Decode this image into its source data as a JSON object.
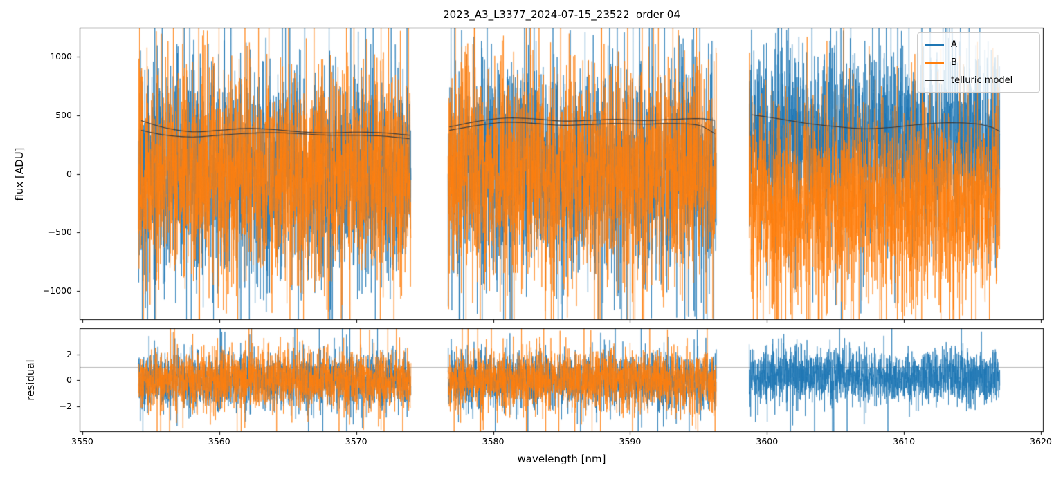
{
  "figure": {
    "title": "2023_A3_L3377_2024-07-15_23522  order 04",
    "xlabel": "wavelength [nm]",
    "background": "#ffffff"
  },
  "legend": {
    "position": "upper right",
    "entries": [
      {
        "label": "A",
        "color": "#1f77b4"
      },
      {
        "label": "B",
        "color": "#ff7f0e"
      },
      {
        "label": "telluric model",
        "color": "#3a3a3a"
      }
    ]
  },
  "chart_data": [
    {
      "id": "flux-panel",
      "type": "line",
      "title": "2023_A3_L3377_2024-07-15_23522  order 04",
      "xlabel": "",
      "ylabel": "flux [ADU]",
      "xlim": [
        3549.8,
        3620.2
      ],
      "ylim": [
        -1250,
        1250
      ],
      "xticks": [
        3550,
        3560,
        3570,
        3580,
        3590,
        3600,
        3610,
        3620
      ],
      "yticks": [
        -1000,
        -500,
        0,
        500,
        1000
      ],
      "grid": false,
      "legend_entries": [
        "A",
        "B",
        "telluric model"
      ],
      "segments": [
        {
          "x_range": [
            3554.1,
            3574.0
          ],
          "noise": {
            "A": {
              "mean": 20,
              "sigma": 430,
              "seed": 11
            },
            "B": {
              "mean": 0,
              "sigma": 440,
              "seed": 22
            }
          },
          "model_curves": [
            [
              [
                3554.3,
                455
              ],
              [
                3556,
                395
              ],
              [
                3558,
                360
              ],
              [
                3560,
                372
              ],
              [
                3562,
                388
              ],
              [
                3564,
                378
              ],
              [
                3566,
                358
              ],
              [
                3568,
                350
              ],
              [
                3570,
                356
              ],
              [
                3572,
                350
              ],
              [
                3573.9,
                330
              ]
            ],
            [
              [
                3554.3,
                372
              ],
              [
                3556,
                332
              ],
              [
                3558,
                315
              ],
              [
                3560,
                330
              ],
              [
                3562,
                345
              ],
              [
                3564,
                352
              ],
              [
                3566,
                342
              ],
              [
                3568,
                330
              ],
              [
                3570,
                330
              ],
              [
                3572,
                322
              ],
              [
                3573.9,
                300
              ]
            ]
          ]
        },
        {
          "x_range": [
            3576.7,
            3596.3
          ],
          "noise": {
            "A": {
              "mean": 30,
              "sigma": 430,
              "seed": 33
            },
            "B": {
              "mean": 10,
              "sigma": 440,
              "seed": 44
            }
          },
          "model_curves": [
            [
              [
                3576.8,
                400
              ],
              [
                3579,
                452
              ],
              [
                3581,
                477
              ],
              [
                3583,
                470
              ],
              [
                3585,
                452
              ],
              [
                3587,
                457
              ],
              [
                3589,
                466
              ],
              [
                3591,
                456
              ],
              [
                3593,
                465
              ],
              [
                3595,
                472
              ],
              [
                3596.2,
                458
              ]
            ],
            [
              [
                3576.8,
                372
              ],
              [
                3579,
                416
              ],
              [
                3581,
                441
              ],
              [
                3583,
                431
              ],
              [
                3585,
                415
              ],
              [
                3587,
                421
              ],
              [
                3589,
                430
              ],
              [
                3591,
                424
              ],
              [
                3593,
                430
              ],
              [
                3595,
                415
              ],
              [
                3596.2,
                342
              ]
            ]
          ]
        },
        {
          "x_range": [
            3598.7,
            3617.0
          ],
          "noise": {
            "A": {
              "mean": 260,
              "sigma": 380,
              "seed": 55
            },
            "B": {
              "mean": -290,
              "sigma": 390,
              "seed": 66
            }
          },
          "model_curves": [
            [
              [
                3598.9,
                505
              ],
              [
                3601,
                468
              ],
              [
                3603,
                430
              ],
              [
                3605,
                404
              ],
              [
                3607,
                386
              ],
              [
                3609,
                396
              ],
              [
                3611,
                420
              ],
              [
                3613,
                436
              ],
              [
                3615,
                430
              ],
              [
                3616.3,
                402
              ],
              [
                3617,
                362
              ]
            ]
          ]
        }
      ]
    },
    {
      "id": "residual-panel",
      "type": "line",
      "ylabel": "residual",
      "xlim": [
        3549.8,
        3620.2
      ],
      "ylim": [
        -4,
        4
      ],
      "xticks": [
        3550,
        3560,
        3570,
        3580,
        3590,
        3600,
        3610,
        3620
      ],
      "yticks": [
        -2,
        0,
        2
      ],
      "hline": 1.0,
      "hline_color": "#999999",
      "grid": false,
      "segments": [
        {
          "x_range": [
            3554.1,
            3574.0
          ],
          "noise": {
            "A": {
              "mean": 0,
              "sigma": 1.05,
              "seed": 77
            },
            "B": {
              "mean": 0,
              "sigma": 1.05,
              "seed": 88
            }
          }
        },
        {
          "x_range": [
            3576.7,
            3596.3
          ],
          "noise": {
            "A": {
              "mean": 0,
              "sigma": 1.05,
              "seed": 99
            },
            "B": {
              "mean": 0,
              "sigma": 1.05,
              "seed": 110
            }
          }
        },
        {
          "x_range": [
            3598.7,
            3617.0
          ],
          "noise": {
            "A": {
              "mean": 0.3,
              "sigma": 1.0,
              "seed": 121
            }
          }
        }
      ]
    }
  ]
}
